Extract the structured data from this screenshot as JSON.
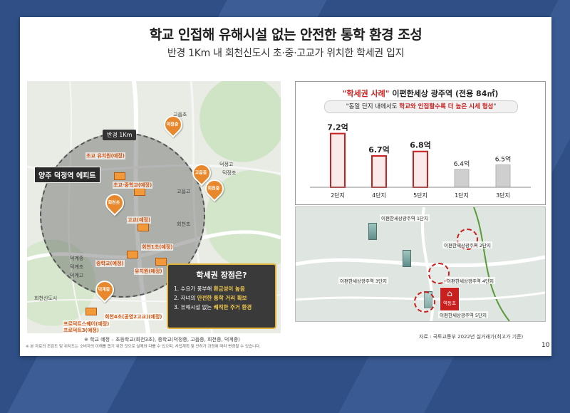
{
  "header": {
    "title": "학교 인접해 유해시설 없는 안전한 통학 환경 조성",
    "subtitle": "반경 1Km 내 회천신도시 초·중·고교가 위치한 학세권 입지"
  },
  "map": {
    "radius_tag": "반경 1Km",
    "complex_label": "양주 덕정역 에피트",
    "schools": [
      {
        "name": "초교 유치원(예정)"
      },
      {
        "name": "초교·중학교(예정)"
      },
      {
        "name": "고교(예정)"
      },
      {
        "name": "회천1초(예정)"
      },
      {
        "name": "중학교(예정)"
      },
      {
        "name": "유치원(예정)"
      },
      {
        "name": "회천4초(공영2고교)(예정)"
      },
      {
        "name": "프로덕트스퀘어(예정)"
      },
      {
        "name": "프로덕트3(예정)"
      }
    ],
    "pins": [
      {
        "name": "덕정중"
      },
      {
        "name": "고읍중"
      },
      {
        "name": "회천중"
      },
      {
        "name": "회천초"
      },
      {
        "name": "덕계중"
      }
    ],
    "places": [
      "고읍초",
      "덕정고",
      "덕정초",
      "덕계초",
      "회천초",
      "덕계고",
      "고읍고",
      "덕계중",
      "회천신도시"
    ],
    "advantages": {
      "title": "학세권 장점은?",
      "items": [
        {
          "prefix": "1. 수요가 풍부해 ",
          "highlight": "환금성이 높음",
          "suffix": ""
        },
        {
          "prefix": "2. 자녀의 ",
          "highlight": "안전한 통학 거리 확보",
          "suffix": ""
        },
        {
          "prefix": "3. 유해시설 없는 ",
          "highlight": "쾌적한 주거 환경",
          "suffix": ""
        }
      ]
    },
    "note": "※ 학교 예정 – 초등학교(회천3초), 중학교(덕정중, 고읍중, 회천중, 덕계중)"
  },
  "case": {
    "title_red": "\"학세권 사례\"",
    "title_rest": " 이편한세상 광주역 (전용 84㎡)",
    "quote_prefix": "\"동일 단지 내에서도 ",
    "quote_red": "학교와 인접할수록 더 높은 시세 형성",
    "quote_suffix": "\""
  },
  "chart_data": {
    "type": "bar",
    "categories": [
      "2단지",
      "4단지",
      "5단지",
      "1단지",
      "3단지"
    ],
    "values": [
      7.2,
      6.7,
      6.8,
      6.4,
      6.5
    ],
    "value_labels": [
      "7.2억",
      "6.7억",
      "6.8억",
      "6.4억",
      "6.5억"
    ],
    "highlighted": [
      true,
      true,
      true,
      false,
      false
    ],
    "ylim": [
      6.0,
      7.4
    ],
    "colors": {
      "highlight": "#c81f1f",
      "normal": "#cfcfcf"
    }
  },
  "map2": {
    "labels": [
      "이편한세상광주역 1단지",
      "이편한세상광주역 2단지",
      "이편한세상광주역 3단지",
      "이편한세상광주역 4단지",
      "이편한세상광주역 5단지"
    ],
    "school_badge": "역동초"
  },
  "source": "자료 : 국토교통부 2022년 실거래가(최고가 기준)",
  "page_number": "10",
  "disclaimer": "※ 본 자료의 조감도 및 위치도는 소비자의 이해를 돕기 위한 것으로 실제와 다를 수 있으며, 사업계획 및 인허가 과정에 따라 변경될 수 있습니다."
}
